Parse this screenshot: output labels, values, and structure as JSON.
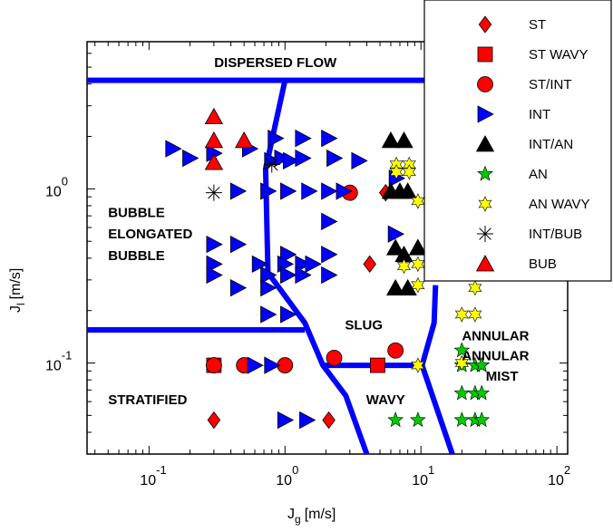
{
  "chart_data": {
    "type": "scatter",
    "title": "",
    "xlabel": {
      "main": "J",
      "sub": "g",
      "unit": "[m/s]"
    },
    "ylabel": {
      "main": "J",
      "sub": "l",
      "unit": "[m/s]"
    },
    "xscale": "log",
    "yscale": "log",
    "xlim": [
      0.035,
      120
    ],
    "ylim": [
      0.03,
      7
    ],
    "x_ticks": [
      {
        "value": 0.1,
        "base": "10",
        "exp": "-1"
      },
      {
        "value": 1,
        "base": "10",
        "exp": "0"
      },
      {
        "value": 10,
        "base": "10",
        "exp": "1"
      },
      {
        "value": 100,
        "base": "10",
        "exp": "2"
      }
    ],
    "y_ticks": [
      {
        "value": 0.1,
        "base": "10",
        "exp": "-1"
      },
      {
        "value": 1,
        "base": "10",
        "exp": "0"
      }
    ],
    "grid": false,
    "legend_position": "top-right",
    "series": [
      {
        "name": "ST",
        "marker": "diamond",
        "color": "#ff0000",
        "points": [
          [
            0.3,
            0.047
          ],
          [
            2.1,
            0.047
          ],
          [
            4.2,
            0.37
          ],
          [
            5.5,
            0.95
          ]
        ]
      },
      {
        "name": "ST WAVY",
        "marker": "square",
        "color": "#ff0000",
        "points": [
          [
            0.3,
            0.097
          ],
          [
            4.8,
            0.097
          ]
        ]
      },
      {
        "name": "ST/INT",
        "marker": "circle",
        "color": "#ff0000",
        "points": [
          [
            0.3,
            0.097
          ],
          [
            0.5,
            0.097
          ],
          [
            1.0,
            0.097
          ],
          [
            2.3,
            0.107
          ],
          [
            3.0,
            0.95
          ],
          [
            6.5,
            0.118
          ]
        ]
      },
      {
        "name": "INT",
        "marker": "triangle-right",
        "color": "#0000ff",
        "points": [
          [
            0.15,
            1.7
          ],
          [
            0.2,
            1.5
          ],
          [
            0.3,
            1.6
          ],
          [
            0.55,
            1.7
          ],
          [
            0.8,
            1.45
          ],
          [
            0.95,
            1.5
          ],
          [
            1.1,
            1.45
          ],
          [
            1.35,
            1.5
          ],
          [
            2.3,
            1.5
          ],
          [
            3.5,
            1.45
          ],
          [
            6.6,
            1.15
          ],
          [
            0.45,
            0.97
          ],
          [
            0.75,
            0.97
          ],
          [
            1.05,
            0.97
          ],
          [
            1.5,
            0.97
          ],
          [
            2.1,
            0.97
          ],
          [
            2.7,
            0.97
          ],
          [
            0.85,
            1.95
          ],
          [
            1.35,
            1.95
          ],
          [
            2.1,
            1.95
          ],
          [
            2.1,
            0.65
          ],
          [
            6.5,
            0.55
          ],
          [
            0.3,
            0.48
          ],
          [
            0.45,
            0.48
          ],
          [
            1.05,
            0.42
          ],
          [
            2.1,
            0.42
          ],
          [
            0.3,
            0.37
          ],
          [
            0.65,
            0.37
          ],
          [
            1.0,
            0.37
          ],
          [
            1.35,
            0.37
          ],
          [
            1.6,
            0.37
          ],
          [
            0.3,
            0.32
          ],
          [
            0.75,
            0.32
          ],
          [
            1.05,
            0.32
          ],
          [
            1.35,
            0.32
          ],
          [
            2.1,
            0.32
          ],
          [
            0.45,
            0.27
          ],
          [
            0.75,
            0.27
          ],
          [
            0.75,
            0.19
          ],
          [
            1.05,
            0.19
          ],
          [
            0.6,
            0.097
          ],
          [
            0.8,
            0.097
          ],
          [
            1.45,
            0.047
          ],
          [
            1.0,
            0.047
          ]
        ]
      },
      {
        "name": "INT/AN",
        "marker": "triangle-up",
        "color": "#000000",
        "points": [
          [
            6.0,
            1.9
          ],
          [
            7.5,
            1.9
          ],
          [
            6.0,
            0.97
          ],
          [
            7.0,
            0.97
          ],
          [
            8.0,
            0.97
          ],
          [
            6.5,
            0.46
          ],
          [
            9.5,
            0.46
          ],
          [
            7.5,
            0.42
          ],
          [
            6.5,
            0.27
          ],
          [
            8.0,
            0.27
          ]
        ]
      },
      {
        "name": "AN",
        "marker": "star",
        "color": "#00cc00",
        "points": [
          [
            6.5,
            0.047
          ],
          [
            9.5,
            0.047
          ],
          [
            20,
            0.047
          ],
          [
            25,
            0.047
          ],
          [
            28,
            0.047
          ],
          [
            20,
            0.067
          ],
          [
            25,
            0.067
          ],
          [
            28,
            0.067
          ],
          [
            20,
            0.097
          ],
          [
            25,
            0.097
          ],
          [
            28,
            0.097
          ],
          [
            20,
            0.118
          ],
          [
            28,
            0.097
          ]
        ]
      },
      {
        "name": "AN WAVY",
        "marker": "star-six",
        "color": "#ffff00",
        "points": [
          [
            6.6,
            1.38
          ],
          [
            8.2,
            1.38
          ],
          [
            6.6,
            1.25
          ],
          [
            8.2,
            1.25
          ],
          [
            9.5,
            0.85
          ],
          [
            7.5,
            0.36
          ],
          [
            9.5,
            0.28
          ],
          [
            9.5,
            0.37
          ],
          [
            20,
            0.19
          ],
          [
            25,
            0.19
          ],
          [
            25,
            0.27
          ],
          [
            20,
            0.1
          ],
          [
            9.5,
            0.097
          ]
        ]
      },
      {
        "name": "INT/BUB",
        "marker": "asterisk",
        "color": "#000000",
        "points": [
          [
            0.3,
            0.95
          ],
          [
            0.8,
            1.38
          ]
        ]
      },
      {
        "name": "BUB",
        "marker": "triangle-up",
        "color": "#ff0000",
        "points": [
          [
            0.3,
            2.6
          ],
          [
            0.3,
            1.9
          ],
          [
            0.5,
            1.9
          ],
          [
            0.3,
            1.42
          ]
        ]
      }
    ],
    "boundary_lines": {
      "color": "#0000ff",
      "paths": [
        [
          [
            0.035,
            4.2
          ],
          [
            120,
            4.2
          ]
        ],
        [
          [
            1.0,
            4.2
          ],
          [
            0.72,
            1.3
          ],
          [
            0.75,
            0.33
          ],
          [
            1.4,
            0.17
          ],
          [
            1.9,
            0.097
          ],
          [
            2.8,
            0.065
          ],
          [
            4.0,
            0.03
          ]
        ],
        [
          [
            0.035,
            0.155
          ],
          [
            1.4,
            0.155
          ]
        ],
        [
          [
            1.9,
            0.097
          ],
          [
            10.2,
            0.097
          ]
        ],
        [
          [
            10.2,
            0.097
          ],
          [
            17,
            0.03
          ]
        ],
        [
          [
            10.2,
            0.097
          ],
          [
            12.5,
            0.17
          ],
          [
            12.8,
            0.28
          ]
        ]
      ]
    },
    "region_labels": [
      {
        "text": "DISPERSED FLOW",
        "x": 0.85,
        "y": 5.0,
        "anchor": "middle"
      },
      {
        "text": "BUBBLE",
        "x": 0.05,
        "y": 0.69,
        "anchor": "start"
      },
      {
        "text": "ELONGATED",
        "x": 0.05,
        "y": 0.52,
        "anchor": "start"
      },
      {
        "text": "BUBBLE",
        "x": 0.05,
        "y": 0.39,
        "anchor": "start"
      },
      {
        "text": "SLUG",
        "x": 3.8,
        "y": 0.156,
        "anchor": "middle"
      },
      {
        "text": "ANNULAR",
        "x": 20,
        "y": 0.135,
        "anchor": "start"
      },
      {
        "text": "ANNULAR",
        "x": 20,
        "y": 0.104,
        "anchor": "start"
      },
      {
        "text": "MIST",
        "x": 30,
        "y": 0.079,
        "anchor": "start"
      },
      {
        "text": "STRATIFIED",
        "x": 0.05,
        "y": 0.058,
        "anchor": "start"
      },
      {
        "text": "WAVY",
        "x": 5.5,
        "y": 0.058,
        "anchor": "middle"
      }
    ]
  }
}
